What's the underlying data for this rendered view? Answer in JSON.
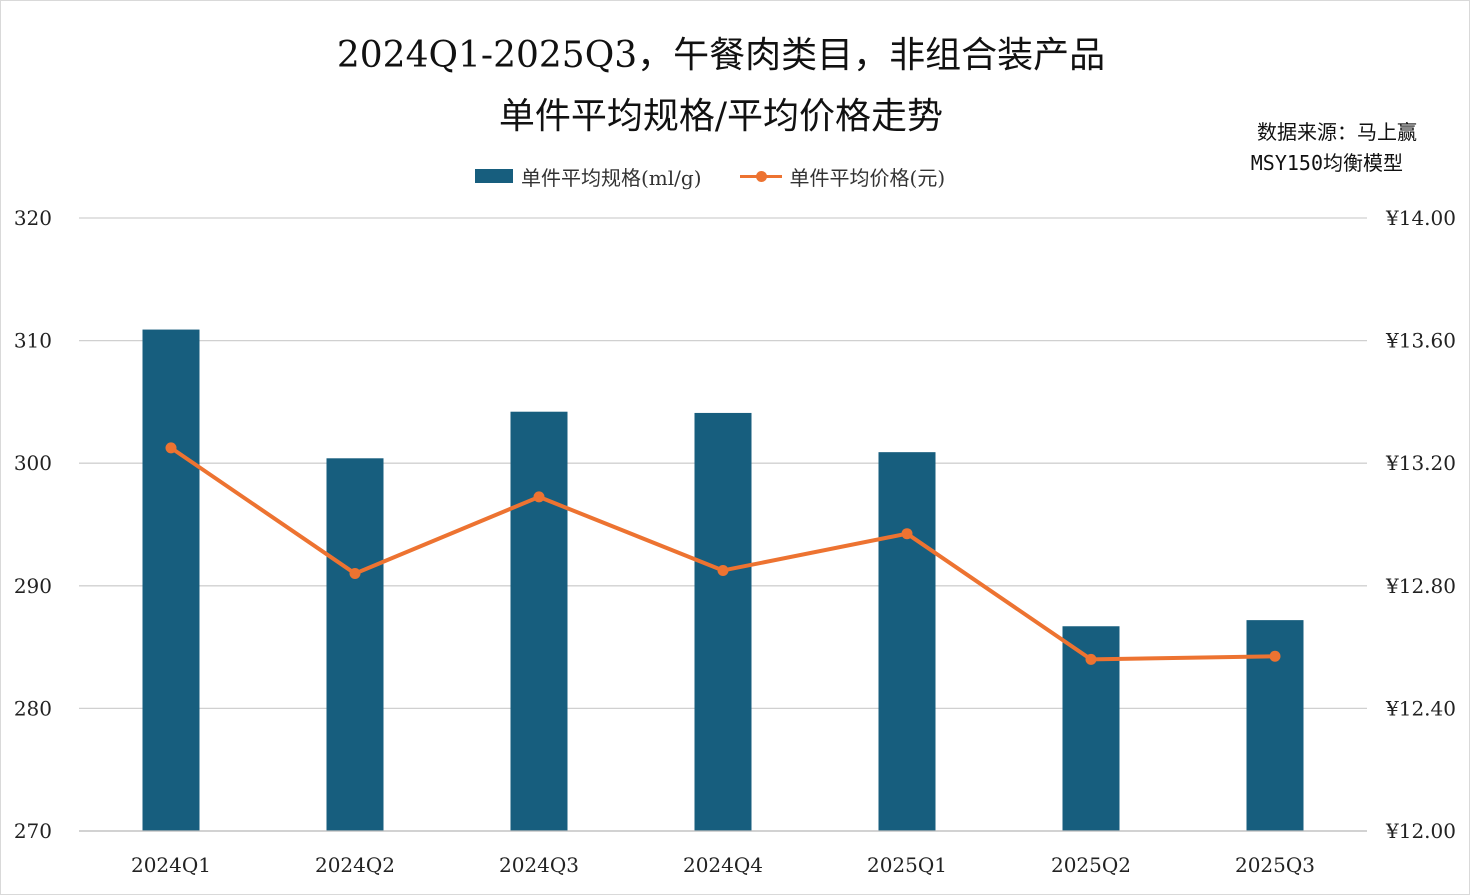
{
  "title": {
    "line1": "2024Q1-2025Q3，午餐肉类目，非组合装产品",
    "line2": "单件平均规格/平均价格走势"
  },
  "source": {
    "line1": "数据来源：马上赢",
    "line2": "MSY150均衡模型"
  },
  "chart_data": {
    "type": "bar",
    "categories": [
      "2024Q1",
      "2024Q2",
      "2024Q3",
      "2024Q4",
      "2025Q1",
      "2025Q2",
      "2025Q3"
    ],
    "series": [
      {
        "name": "单件平均规格(ml/g)",
        "type": "bar",
        "axis": "left",
        "values": [
          310.9,
          300.4,
          304.2,
          304.1,
          300.9,
          286.7,
          287.2
        ],
        "color": "#175e7e"
      },
      {
        "name": "单件平均价格(元)",
        "type": "line",
        "axis": "right",
        "values": [
          13.25,
          12.84,
          13.09,
          12.85,
          12.97,
          12.56,
          12.57
        ],
        "color": "#ed7331"
      }
    ],
    "y_left": {
      "min": 270,
      "max": 320,
      "ticks": [
        "270",
        "280",
        "290",
        "300",
        "310",
        "320"
      ]
    },
    "y_right": {
      "min": 12.0,
      "max": 14.0,
      "ticks": [
        "¥12.00",
        "¥12.40",
        "¥12.80",
        "¥13.20",
        "¥13.60",
        "¥14.00"
      ]
    },
    "grid": true,
    "legend_position": "top-center"
  }
}
